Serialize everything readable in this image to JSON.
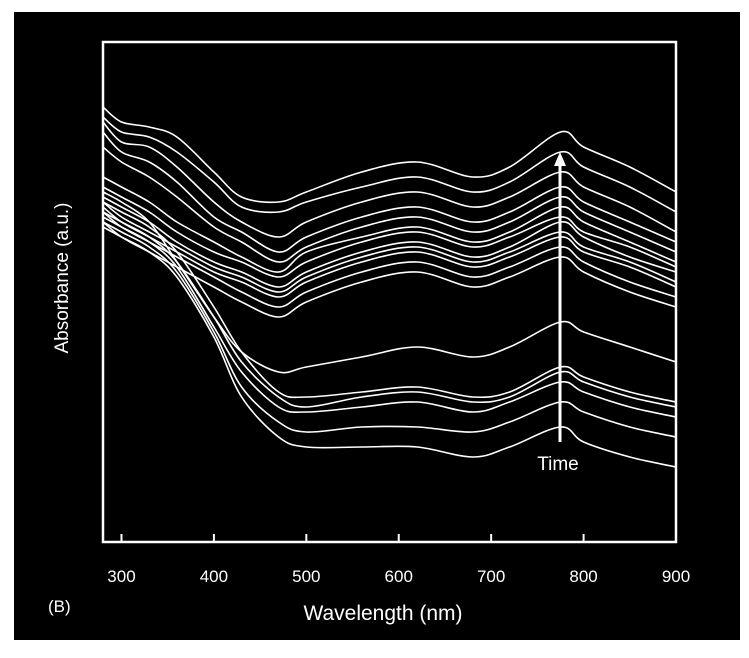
{
  "panel_label": "(B)",
  "annotation": "Time",
  "colors": {
    "background": "#000000",
    "foreground": "#ffffff",
    "page": "#ffffff"
  },
  "chart_data": {
    "type": "line",
    "title": "",
    "xlabel": "Wavelength (nm)",
    "ylabel": "Absorbance (a.u.)",
    "xlim": [
      280,
      900
    ],
    "ylim": [
      0,
      1
    ],
    "y_ticks_shown": false,
    "grid": false,
    "legend": "none",
    "x_ticks": [
      300,
      400,
      500,
      600,
      700,
      800,
      900
    ],
    "x": [
      280,
      300,
      330,
      360,
      400,
      430,
      470,
      500,
      560,
      620,
      680,
      720,
      775,
      800,
      850,
      900
    ],
    "series": [
      {
        "values": [
          0.87,
          0.84,
          0.83,
          0.81,
          0.74,
          0.69,
          0.68,
          0.7,
          0.74,
          0.76,
          0.73,
          0.75,
          0.82,
          0.79,
          0.75,
          0.7
        ]
      },
      {
        "values": [
          0.85,
          0.82,
          0.81,
          0.78,
          0.72,
          0.67,
          0.66,
          0.68,
          0.71,
          0.73,
          0.7,
          0.72,
          0.78,
          0.75,
          0.71,
          0.66
        ]
      },
      {
        "values": [
          0.84,
          0.8,
          0.79,
          0.75,
          0.68,
          0.64,
          0.61,
          0.64,
          0.68,
          0.7,
          0.67,
          0.69,
          0.74,
          0.71,
          0.67,
          0.62
        ]
      },
      {
        "values": [
          0.82,
          0.78,
          0.76,
          0.72,
          0.65,
          0.62,
          0.58,
          0.61,
          0.65,
          0.67,
          0.64,
          0.66,
          0.71,
          0.68,
          0.64,
          0.6
        ]
      },
      {
        "values": [
          0.79,
          0.76,
          0.73,
          0.69,
          0.63,
          0.6,
          0.56,
          0.59,
          0.63,
          0.65,
          0.62,
          0.64,
          0.69,
          0.66,
          0.62,
          0.58
        ]
      },
      {
        "values": [
          0.73,
          0.71,
          0.68,
          0.64,
          0.6,
          0.57,
          0.54,
          0.58,
          0.61,
          0.63,
          0.6,
          0.62,
          0.67,
          0.64,
          0.6,
          0.56
        ]
      },
      {
        "values": [
          0.71,
          0.69,
          0.66,
          0.62,
          0.58,
          0.56,
          0.53,
          0.56,
          0.6,
          0.62,
          0.59,
          0.61,
          0.65,
          0.62,
          0.59,
          0.55
        ]
      },
      {
        "values": [
          0.69,
          0.67,
          0.64,
          0.6,
          0.56,
          0.54,
          0.51,
          0.54,
          0.58,
          0.6,
          0.57,
          0.59,
          0.64,
          0.61,
          0.57,
          0.54
        ]
      },
      {
        "values": [
          0.68,
          0.65,
          0.62,
          0.59,
          0.55,
          0.53,
          0.5,
          0.53,
          0.57,
          0.59,
          0.56,
          0.58,
          0.62,
          0.59,
          0.56,
          0.52
        ]
      },
      {
        "values": [
          0.67,
          0.64,
          0.61,
          0.58,
          0.54,
          0.52,
          0.49,
          0.52,
          0.56,
          0.58,
          0.55,
          0.57,
          0.61,
          0.58,
          0.55,
          0.51
        ]
      },
      {
        "values": [
          0.66,
          0.63,
          0.6,
          0.57,
          0.53,
          0.5,
          0.47,
          0.5,
          0.54,
          0.56,
          0.53,
          0.55,
          0.59,
          0.56,
          0.52,
          0.49
        ]
      },
      {
        "values": [
          0.64,
          0.61,
          0.58,
          0.55,
          0.51,
          0.48,
          0.45,
          0.48,
          0.52,
          0.54,
          0.51,
          0.53,
          0.57,
          0.54,
          0.5,
          0.47
        ]
      },
      {
        "values": [
          0.7,
          0.68,
          0.64,
          0.56,
          0.45,
          0.38,
          0.34,
          0.35,
          0.37,
          0.39,
          0.37,
          0.39,
          0.44,
          0.42,
          0.39,
          0.36
        ]
      },
      {
        "values": [
          0.68,
          0.66,
          0.63,
          0.58,
          0.47,
          0.38,
          0.3,
          0.29,
          0.3,
          0.31,
          0.29,
          0.3,
          0.35,
          0.33,
          0.3,
          0.28
        ]
      },
      {
        "values": [
          0.66,
          0.64,
          0.61,
          0.56,
          0.45,
          0.36,
          0.29,
          0.27,
          0.29,
          0.3,
          0.28,
          0.29,
          0.34,
          0.32,
          0.29,
          0.27
        ]
      },
      {
        "values": [
          0.65,
          0.63,
          0.6,
          0.55,
          0.43,
          0.34,
          0.27,
          0.26,
          0.27,
          0.28,
          0.26,
          0.28,
          0.32,
          0.3,
          0.27,
          0.25
        ]
      },
      {
        "values": [
          0.64,
          0.62,
          0.59,
          0.54,
          0.42,
          0.31,
          0.24,
          0.22,
          0.23,
          0.23,
          0.22,
          0.24,
          0.28,
          0.26,
          0.23,
          0.21
        ]
      },
      {
        "values": [
          0.63,
          0.61,
          0.58,
          0.53,
          0.41,
          0.29,
          0.21,
          0.19,
          0.19,
          0.19,
          0.17,
          0.19,
          0.23,
          0.2,
          0.17,
          0.15
        ]
      }
    ]
  }
}
